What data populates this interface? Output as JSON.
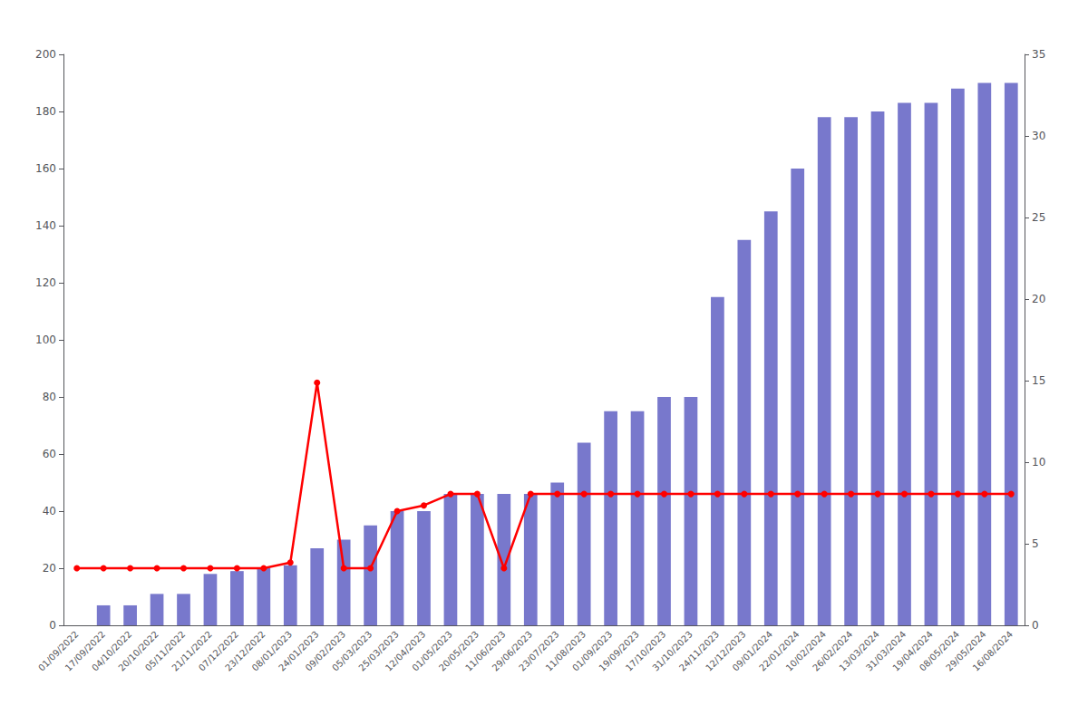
{
  "chart_data": {
    "type": "bar",
    "categories": [
      "01/09/2022",
      "17/09/2022",
      "04/10/2022",
      "20/10/2022",
      "05/11/2022",
      "21/11/2022",
      "07/12/2022",
      "23/12/2022",
      "08/01/2023",
      "24/01/2023",
      "09/02/2023",
      "05/03/2023",
      "25/03/2023",
      "12/04/2023",
      "01/05/2023",
      "20/05/2023",
      "11/06/2023",
      "29/06/2023",
      "23/07/2023",
      "11/08/2023",
      "01/09/2023",
      "19/09/2023",
      "17/10/2023",
      "31/10/2023",
      "24/11/2023",
      "12/12/2023",
      "09/01/2024",
      "22/01/2024",
      "10/02/2024",
      "26/02/2024",
      "13/03/2024",
      "31/03/2024",
      "19/04/2024",
      "08/05/2024",
      "29/05/2024",
      "16/08/2024"
    ],
    "series": [
      {
        "type": "bar",
        "color": "#7878cc",
        "values": [
          0,
          7,
          7,
          11,
          11,
          18,
          19,
          20,
          21,
          27,
          30,
          35,
          40,
          40,
          46,
          46,
          46,
          46,
          50,
          64,
          75,
          75,
          80,
          80,
          115,
          135,
          145,
          160,
          178,
          178,
          180,
          183,
          183,
          188,
          190,
          190
        ]
      },
      {
        "type": "line",
        "color": "#ff0000",
        "marker": "circle",
        "values": [
          20,
          20,
          20,
          20,
          20,
          20,
          20,
          20,
          22,
          85,
          20,
          20,
          40,
          42,
          46,
          46,
          20,
          46,
          46,
          46,
          46,
          46,
          46,
          46,
          46,
          46,
          46,
          46,
          46,
          46,
          46,
          46,
          46,
          46,
          46,
          46
        ]
      }
    ],
    "ylim": [
      0,
      200
    ],
    "yticks": [
      0,
      20,
      40,
      60,
      80,
      100,
      120,
      140,
      160,
      180,
      200
    ],
    "y2lim": [
      0,
      35
    ],
    "y2ticks": [
      0,
      5,
      10,
      15,
      20,
      25,
      30,
      35
    ],
    "grid": false
  }
}
